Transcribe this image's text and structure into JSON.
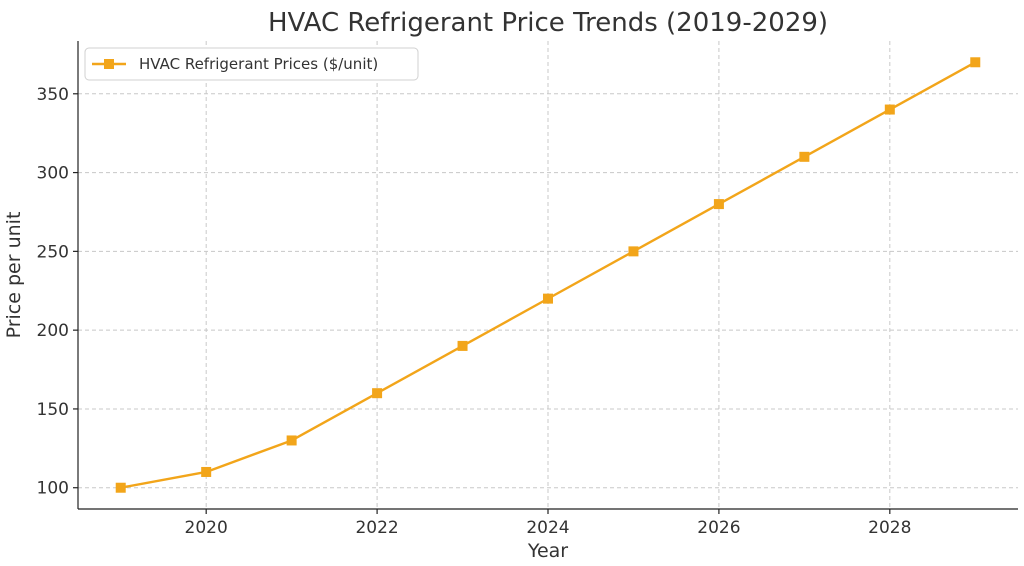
{
  "chart_data": {
    "type": "line",
    "title": "HVAC Refrigerant Price Trends (2019-2029)",
    "xlabel": "Year",
    "ylabel": "Price per unit",
    "x": [
      2019,
      2020,
      2021,
      2022,
      2023,
      2024,
      2025,
      2026,
      2027,
      2028,
      2029
    ],
    "series": [
      {
        "name": "HVAC Refrigerant Prices ($/unit)",
        "values": [
          100,
          110,
          130,
          160,
          190,
          220,
          250,
          280,
          310,
          340,
          370
        ],
        "color": "#f2a51a",
        "marker": "square"
      }
    ],
    "xlim": [
      2018.5,
      2029.5
    ],
    "ylim": [
      86.5,
      383.5
    ],
    "xticks": [
      2020,
      2022,
      2024,
      2026,
      2028
    ],
    "yticks": [
      100,
      150,
      200,
      250,
      300,
      350
    ],
    "grid": true,
    "legend_position": "top-left"
  }
}
